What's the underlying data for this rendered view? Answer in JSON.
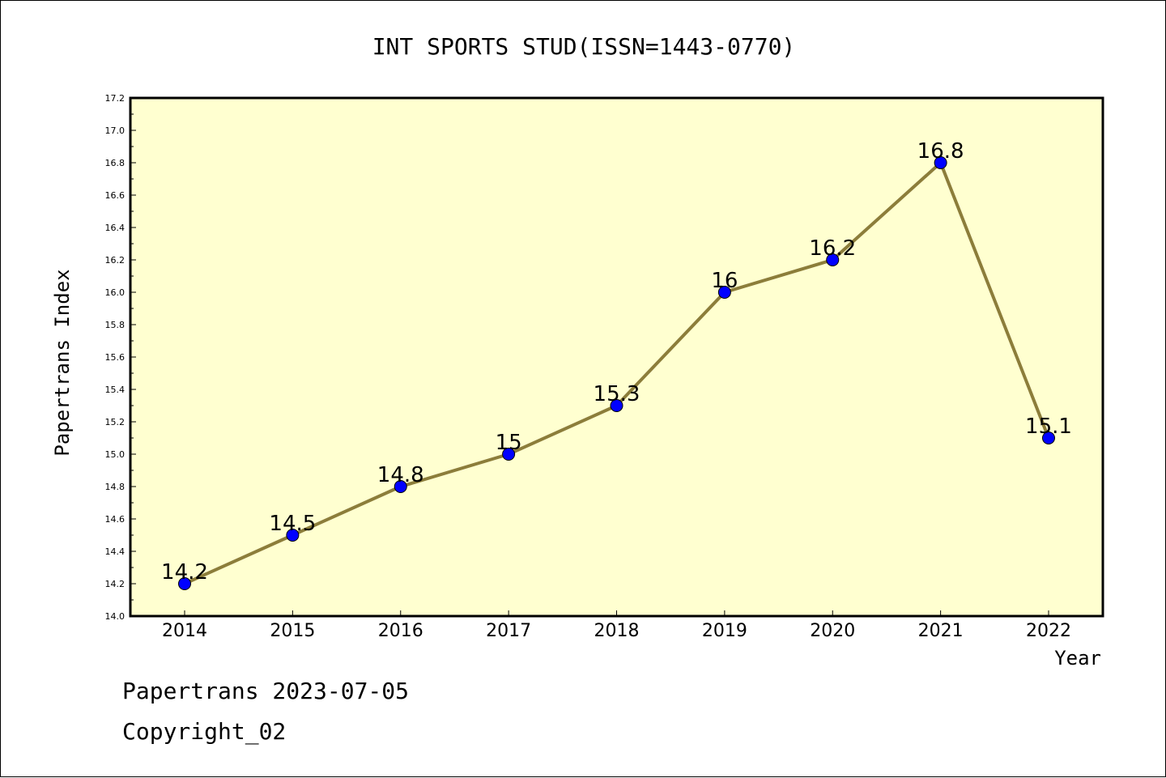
{
  "chart_data": {
    "type": "line",
    "title": "INT SPORTS STUD(ISSN=1443-0770)",
    "xlabel": "Year",
    "ylabel": "Papertrans Index",
    "categories": [
      "2014",
      "2015",
      "2016",
      "2017",
      "2018",
      "2019",
      "2020",
      "2021",
      "2022"
    ],
    "series": [
      {
        "values": [
          14.2,
          14.5,
          14.8,
          15.0,
          15.3,
          16.0,
          16.2,
          16.8,
          15.1
        ]
      }
    ],
    "data_labels": [
      "14.2",
      "14.5",
      "14.8",
      "15",
      "15.3",
      "16",
      "16.2",
      "16.8",
      "15.1"
    ],
    "ylim": [
      14.0,
      17.2
    ],
    "yticks": [
      "14.0",
      "14.2",
      "14.4",
      "14.6",
      "14.8",
      "15.0",
      "15.2",
      "15.4",
      "15.6",
      "15.8",
      "16.0",
      "16.2",
      "16.4",
      "16.6",
      "16.8",
      "17.0",
      "17.2"
    ],
    "grid": false,
    "colors": {
      "plot_background": "#ffffd0",
      "line": "#8c7d3a",
      "marker": "#0000ff"
    }
  },
  "footer": {
    "line1": "Papertrans 2023-07-05",
    "line2": "Copyright_02"
  }
}
